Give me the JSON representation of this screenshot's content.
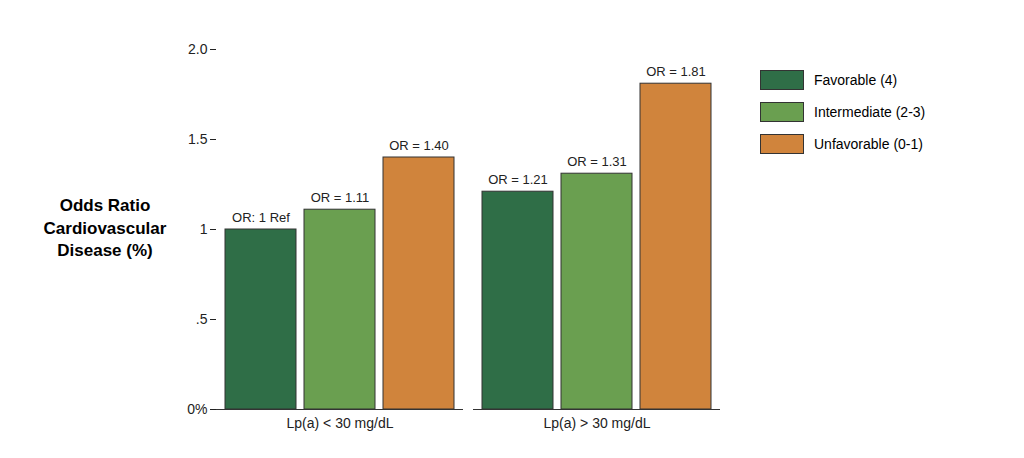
{
  "chart_data": {
    "type": "bar",
    "y_label": "Odds Ratio Cardiovascular Disease (%)",
    "categories": [
      "Lp(a) < 30 mg/dL",
      "Lp(a) > 30 mg/dL"
    ],
    "series": [
      {
        "name": "Favorable (4)",
        "color": "#2f6e47",
        "values": [
          1,
          1.21
        ],
        "value_labels": [
          "OR: 1 Ref",
          "OR = 1.21"
        ]
      },
      {
        "name": "Intermediate (2-3)",
        "color": "#6a9f50",
        "values": [
          1.11,
          1.31
        ],
        "value_labels": [
          "OR = 1.11",
          "OR = 1.31"
        ]
      },
      {
        "name": "Unfavorable (0-1)",
        "color": "#d0843c",
        "values": [
          1.4,
          1.81
        ],
        "value_labels": [
          "OR = 1.40",
          "OR = 1.81"
        ]
      }
    ],
    "ylim": [
      0,
      2
    ],
    "yticks": [
      {
        "value": 0,
        "label": "0%"
      },
      {
        "value": 0.5,
        "label": ".5"
      },
      1,
      1.5,
      {
        "value": 2,
        "label": "2.0"
      }
    ],
    "grid": false,
    "legend": "right",
    "data_labels": true
  }
}
